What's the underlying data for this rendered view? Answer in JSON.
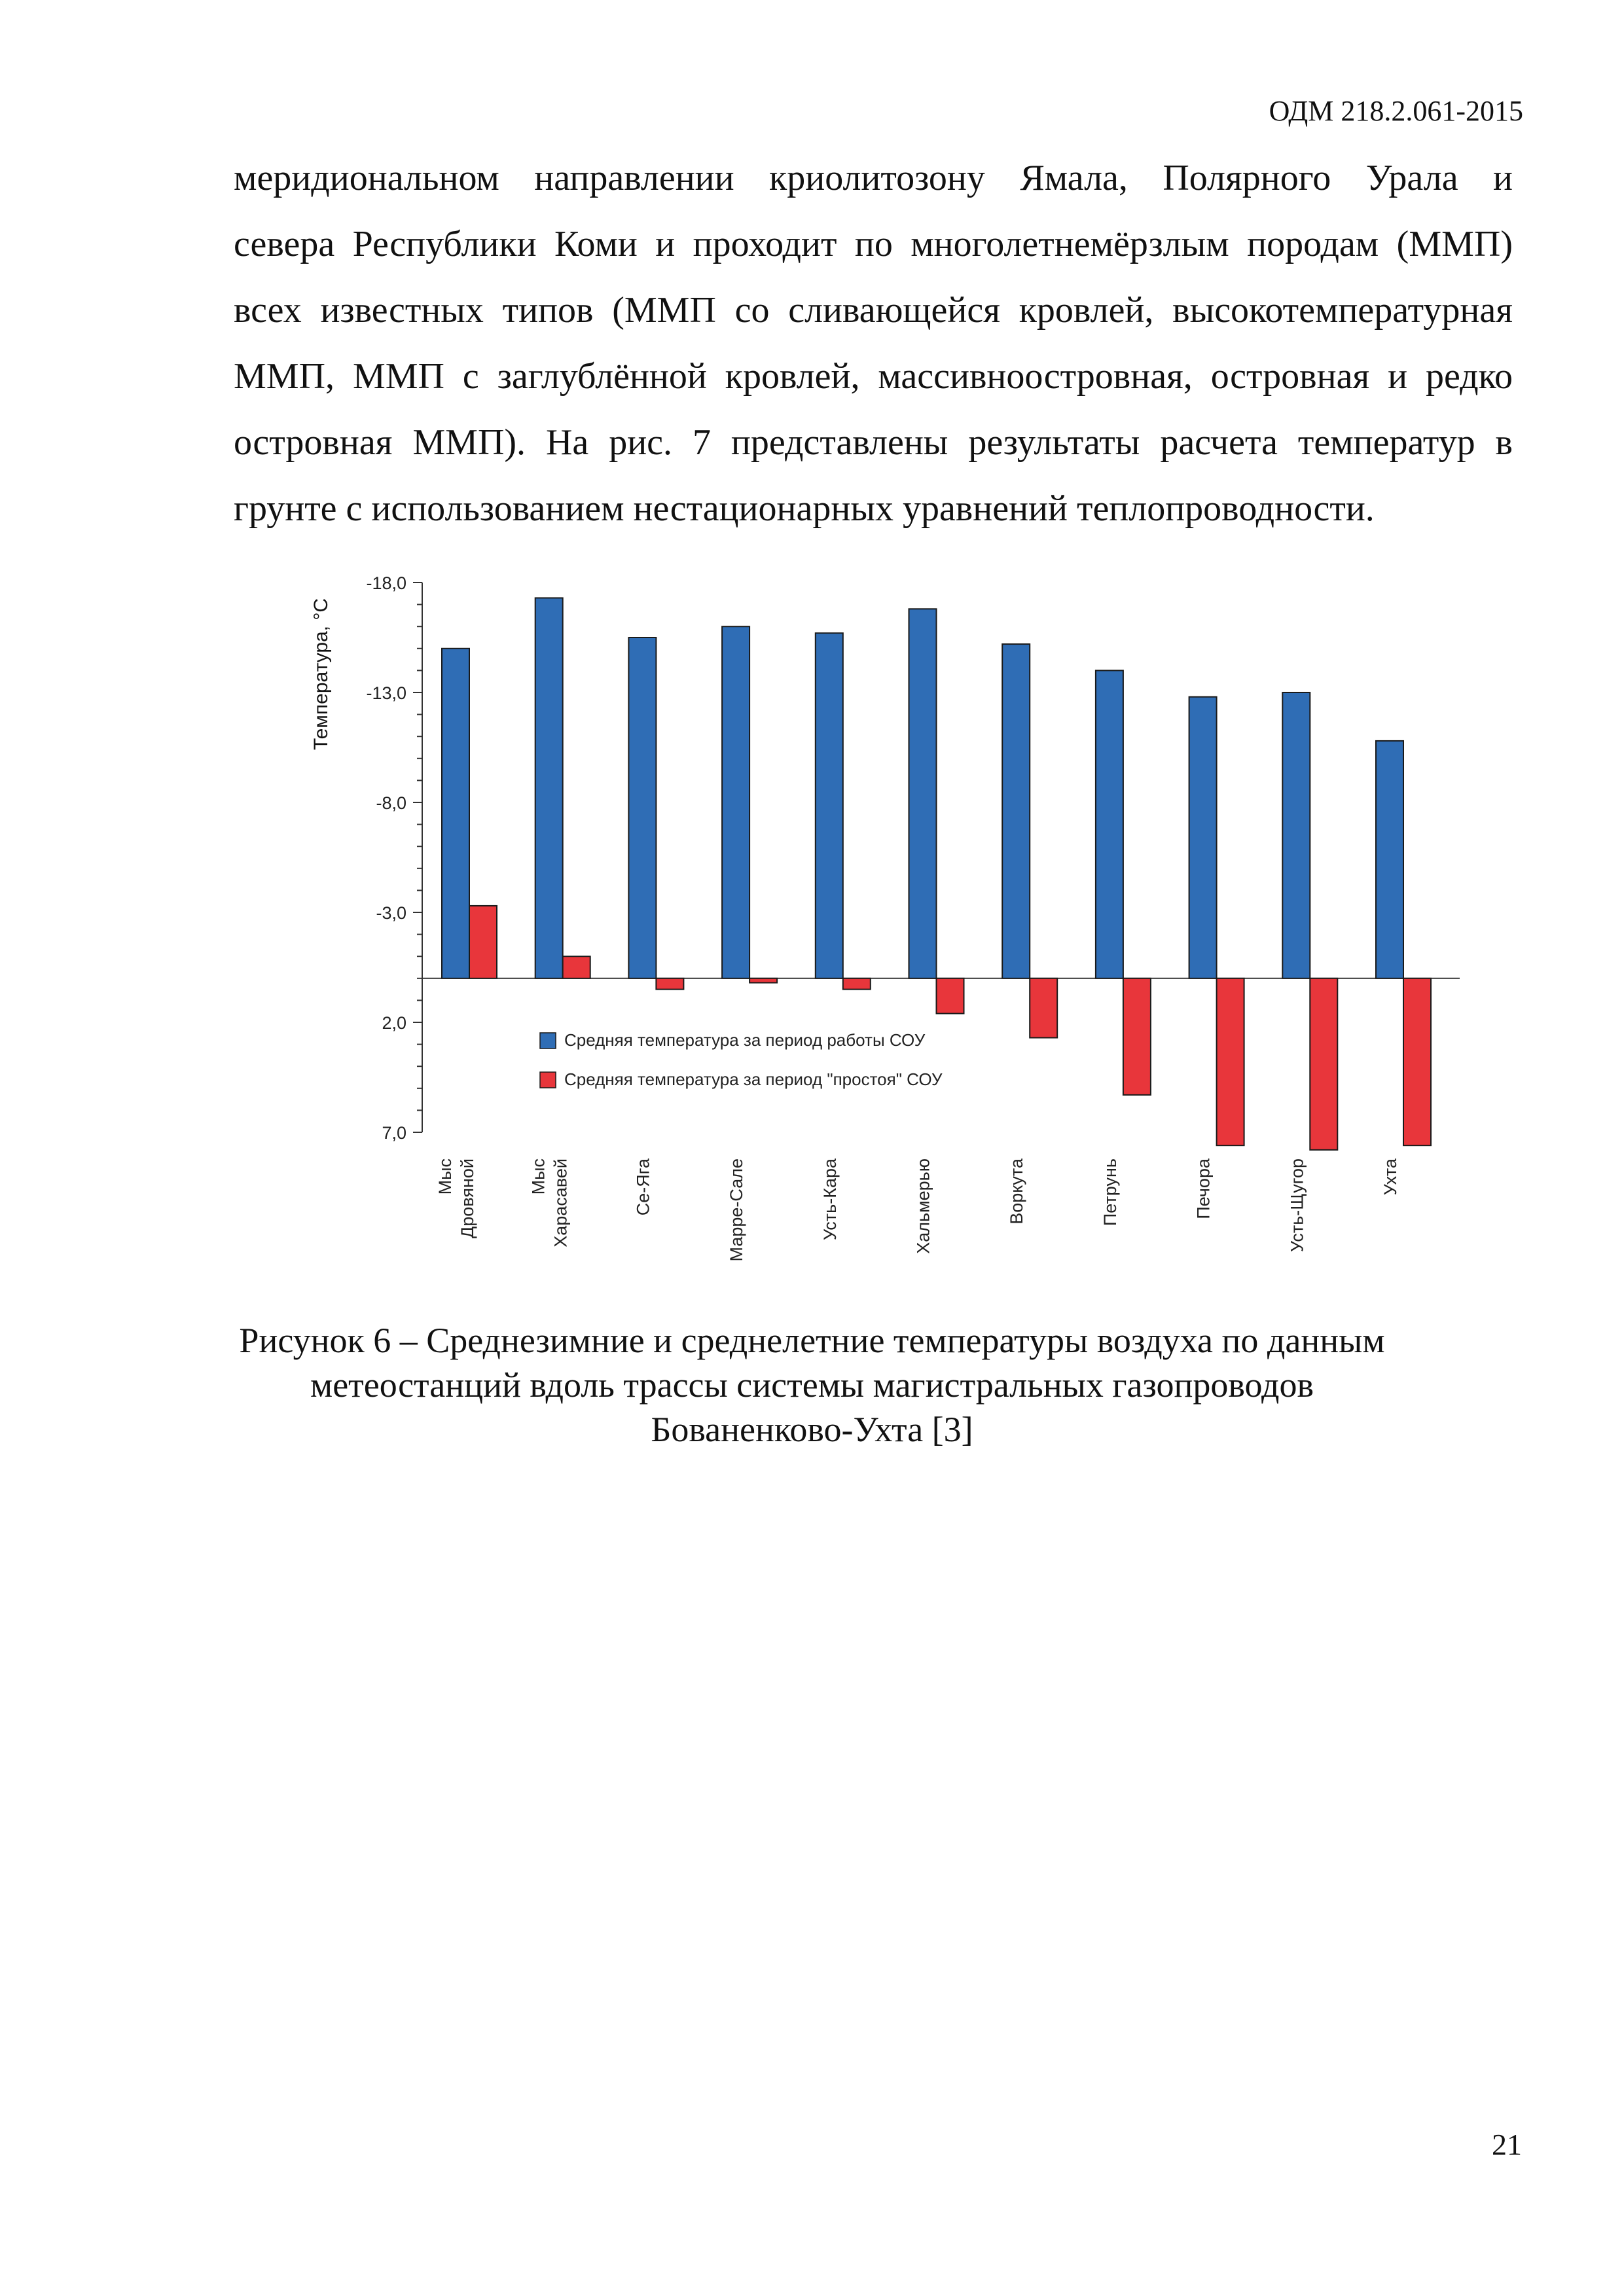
{
  "header": {
    "doc_code": "ОДМ 218.2.061-2015"
  },
  "body": {
    "lines": [
      "меридиональном направлении криолитозону Ямала, Полярного Урала и",
      "севера Республики Коми и проходит по многолетнемёрзлым породам (ММП)",
      "всех известных типов (ММП со сливающейся кровлей, высокотемпературная",
      "ММП, ММП с заглублённой кровлей, массивноостровная, островная и редко",
      "островная ММП). На рис. 7 представлены  результаты расчета температур в",
      "грунте с использованием нестационарных уравнений теплопроводности."
    ]
  },
  "chart_data": {
    "type": "bar",
    "ylabel": "Температура, °C",
    "y_axis_inverted": true,
    "ylim": [
      -18,
      7
    ],
    "y_ticks": [
      "-18,0",
      "-13,0",
      "-8,0",
      "-3,0",
      "2,0",
      "7,0"
    ],
    "y_tick_values": [
      -18,
      -13,
      -8,
      -3,
      2,
      7
    ],
    "categories": [
      "Мыс\nДровяной",
      "Мыс\nХарасавей",
      "Се-Яга",
      "Марре-Сале",
      "Усть-Кара",
      "Хальмерью",
      "Воркута",
      "Петрунь",
      "Печора",
      "Усть-Щугор",
      "Ухта"
    ],
    "series": [
      {
        "name": "Средняя температура за период работы СОУ",
        "color": "#2f6db5",
        "values": [
          -15.0,
          -17.3,
          -15.5,
          -16.0,
          -15.7,
          -16.8,
          -15.2,
          -14.0,
          -12.8,
          -13.0,
          -10.8
        ]
      },
      {
        "name": "Средняя температура за период \"простоя\" СОУ",
        "color": "#e8363b",
        "values": [
          -3.3,
          -1.0,
          0.5,
          0.2,
          0.5,
          1.6,
          2.7,
          5.3,
          7.6,
          7.8,
          7.6
        ]
      }
    ],
    "legend_position": "inside-lower-left",
    "grid": false
  },
  "caption": {
    "lines": [
      "Рисунок 6 – Среднезимние и среднелетние температуры воздуха по данным",
      "метеостанций вдоль трассы системы магистральных газопроводов",
      "Бованенково-Ухта [3]"
    ]
  },
  "footer": {
    "page_number": "21"
  }
}
